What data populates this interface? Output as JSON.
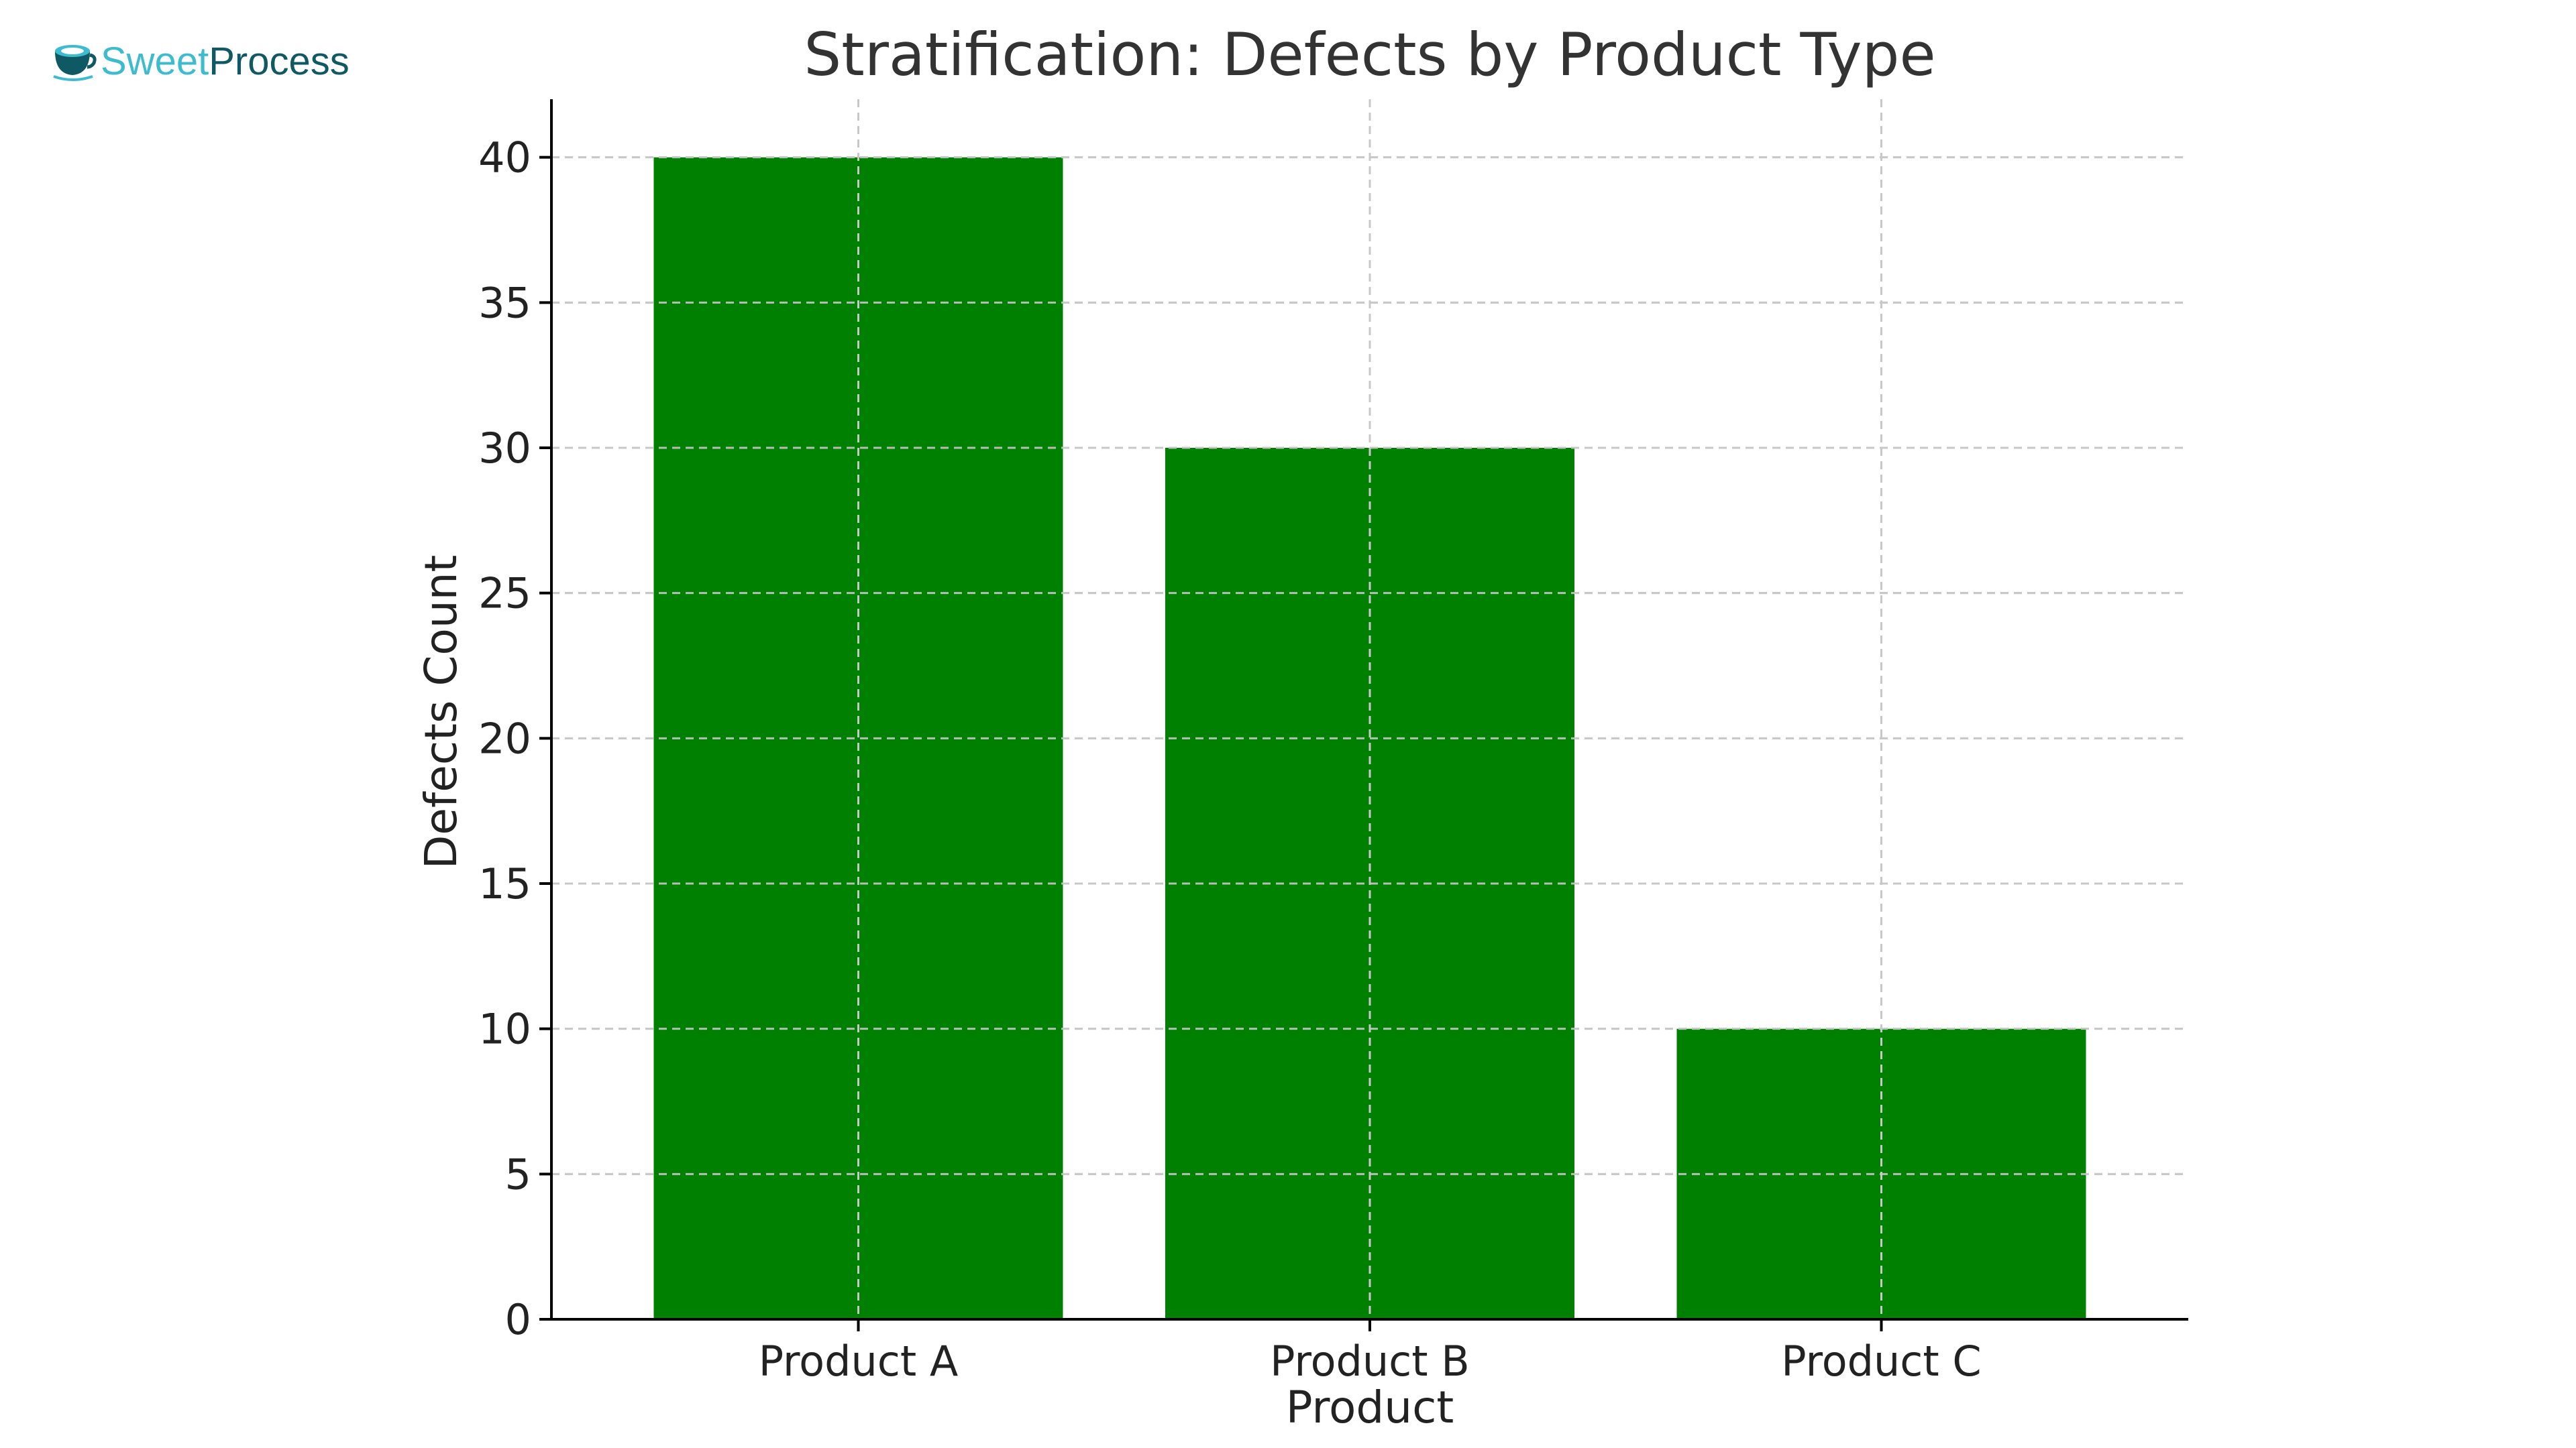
{
  "logo": {
    "part1": "Sweet",
    "part2": "Process",
    "icon": "teacup-icon",
    "colors": {
      "sweet": "#3dbccf",
      "process": "#0e5964"
    }
  },
  "chart_data": {
    "type": "bar",
    "title": "Stratification: Defects by Product Type",
    "xlabel": "Product",
    "ylabel": "Defects Count",
    "categories": [
      "Product A",
      "Product B",
      "Product C"
    ],
    "values": [
      40,
      30,
      10
    ],
    "ylim": [
      0,
      42
    ],
    "yticks": [
      0,
      5,
      10,
      15,
      20,
      25,
      30,
      35,
      40
    ],
    "grid": true,
    "grid_style": "dashed",
    "bar_color": "#008000",
    "legend": "none"
  }
}
